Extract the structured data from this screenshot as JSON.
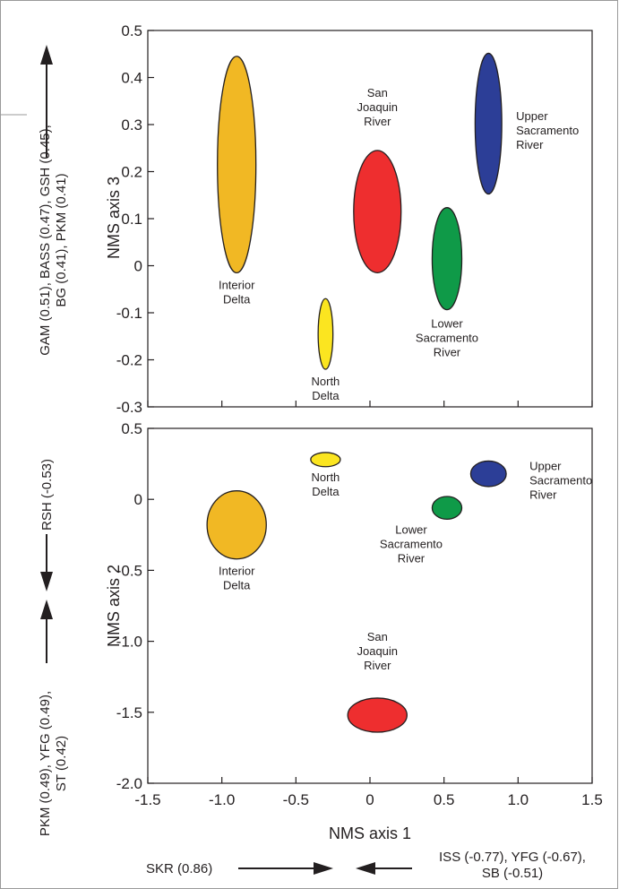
{
  "chart_data": [
    {
      "type": "scatter",
      "xlabel": "",
      "ylabel": "NMS axis 3",
      "xlim": [
        -1.5,
        1.5
      ],
      "ylim": [
        -0.3,
        0.5
      ],
      "xticks": [
        "-1.5",
        "-1.0",
        "-0.5",
        "0",
        "0.5",
        "1.0",
        "1.5"
      ],
      "yticks": [
        "0.5",
        "0.4",
        "0.3",
        "0.2",
        "0.1",
        "0",
        "-0.1",
        "-0.2",
        "-0.3"
      ],
      "y_driver_positive": [
        "GAM (0.51), BASS (0.47), GSH (0.45),",
        "BG (0.41), PKM (0.41)"
      ],
      "groups": [
        {
          "lines": [
            "Interior",
            "Delta"
          ],
          "color": "#f1b824",
          "x": -0.9,
          "y": 0.215,
          "x_extent": [
            -1.03,
            -0.77
          ],
          "y_extent": [
            -0.015,
            0.445
          ]
        },
        {
          "lines": [
            "North",
            "Delta"
          ],
          "color": "#fbe520",
          "x": -0.3,
          "y": -0.145,
          "x_extent": [
            -0.35,
            -0.25
          ],
          "y_extent": [
            -0.22,
            -0.07
          ]
        },
        {
          "lines": [
            "San",
            "Joaquin",
            "River"
          ],
          "color": "#ee2e2f",
          "x": 0.05,
          "y": 0.115,
          "x_extent": [
            -0.11,
            0.21
          ],
          "y_extent": [
            -0.015,
            0.245
          ]
        },
        {
          "lines": [
            "Lower",
            "Sacramento",
            "River"
          ],
          "color": "#0f9a48",
          "x": 0.52,
          "y": 0.015,
          "x_extent": [
            0.42,
            0.62
          ],
          "y_extent": [
            -0.095,
            0.122
          ]
        },
        {
          "lines": [
            "Upper",
            "Sacramento",
            "River"
          ],
          "color": "#2c3e97",
          "x": 0.8,
          "y": 0.302,
          "x_extent": [
            0.71,
            0.89
          ],
          "y_extent": [
            0.153,
            0.452
          ]
        }
      ]
    },
    {
      "type": "scatter",
      "xlabel": "NMS axis 1",
      "ylabel": "NMS axis 2",
      "xlim": [
        -1.5,
        1.5
      ],
      "ylim": [
        -2.0,
        0.5
      ],
      "xticks": [
        "-1.5",
        "-1.0",
        "-0.5",
        "0",
        "0.5",
        "1.0",
        "1.5"
      ],
      "yticks": [
        "0.5",
        "0",
        "-0.5",
        "-1.0",
        "-1.5",
        "-2.0"
      ],
      "y_driver_positive": [
        "RSH (-0.53)"
      ],
      "y_driver_negative": [
        "PKM (0.49), YFG (0.49),",
        "ST (0.42)"
      ],
      "x_driver_positive": [
        "SKR (0.86)"
      ],
      "x_driver_negative": [
        "ISS (-0.77), YFG (-0.67),",
        "SB (-0.51)"
      ],
      "groups": [
        {
          "lines": [
            "Interior",
            "Delta"
          ],
          "color": "#f1b824",
          "x": -0.9,
          "y": -0.18,
          "x_extent": [
            -1.1,
            -0.7
          ],
          "y_extent": [
            -0.42,
            0.06
          ]
        },
        {
          "lines": [
            "North",
            "Delta"
          ],
          "color": "#fbe520",
          "x": -0.3,
          "y": 0.28,
          "x_extent": [
            -0.4,
            -0.2
          ],
          "y_extent": [
            0.23,
            0.33
          ]
        },
        {
          "lines": [
            "San",
            "Joaquin",
            "River"
          ],
          "color": "#ee2e2f",
          "x": 0.05,
          "y": -1.52,
          "x_extent": [
            -0.15,
            0.25
          ],
          "y_extent": [
            -1.64,
            -1.4
          ]
        },
        {
          "lines": [
            "Lower",
            "Sacramento",
            "River"
          ],
          "color": "#0f9a48",
          "x": 0.52,
          "y": -0.06,
          "x_extent": [
            0.42,
            0.62
          ],
          "y_extent": [
            -0.14,
            0.02
          ]
        },
        {
          "lines": [
            "Upper",
            "Sacramento",
            "River"
          ],
          "color": "#2c3e97",
          "x": 0.8,
          "y": 0.18,
          "x_extent": [
            0.68,
            0.92
          ],
          "y_extent": [
            0.09,
            0.27
          ]
        }
      ]
    }
  ]
}
